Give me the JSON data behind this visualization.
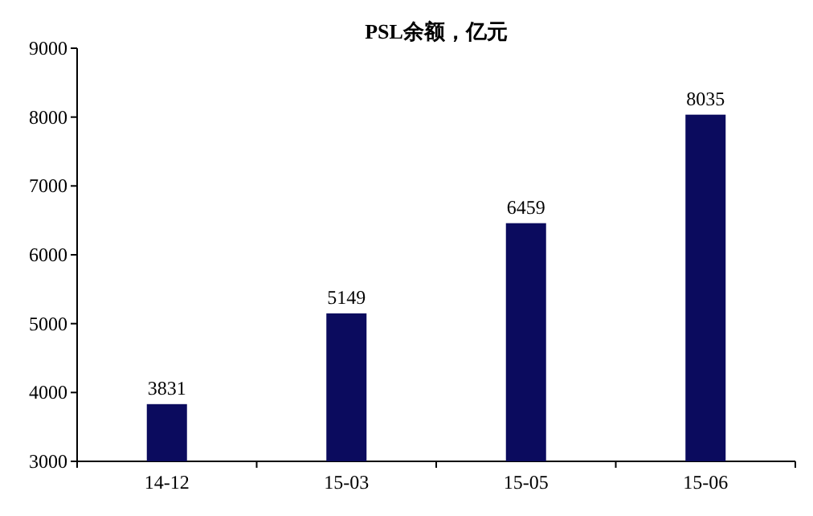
{
  "chart_data": {
    "type": "bar",
    "title": "PSL余额，亿元",
    "categories": [
      "14-12",
      "15-03",
      "15-05",
      "15-06"
    ],
    "values": [
      3831,
      5149,
      6459,
      8035
    ],
    "color": "#0b0b5e",
    "ylim": [
      3000,
      9000
    ],
    "yticks": [
      3000,
      4000,
      5000,
      6000,
      7000,
      8000,
      9000
    ],
    "data_labels": true
  }
}
